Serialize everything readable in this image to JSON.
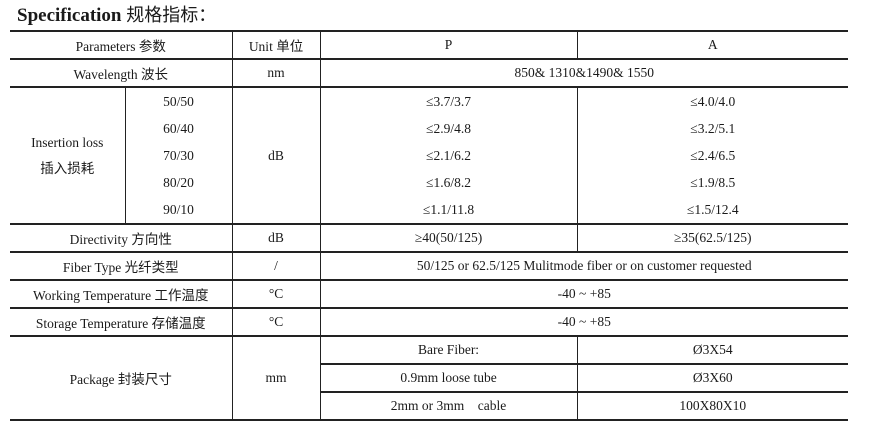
{
  "title": {
    "bold": "Specification",
    "cn": "规格指标："
  },
  "header": {
    "parameters": "Parameters 参数",
    "unit": "Unit 单位",
    "p": "P",
    "a": "A"
  },
  "wavelength": {
    "label": "Wavelength 波长",
    "unit": "nm",
    "value": "850& 1310&1490& 1550"
  },
  "insertion_loss": {
    "label_en": "Insertion loss",
    "label_cn": "插入损耗",
    "unit": "dB",
    "rows": [
      {
        "ratio": "50/50",
        "p": "≤3.7/3.7",
        "a": "≤4.0/4.0"
      },
      {
        "ratio": "60/40",
        "p": "≤2.9/4.8",
        "a": "≤3.2/5.1"
      },
      {
        "ratio": "70/30",
        "p": "≤2.1/6.2",
        "a": "≤2.4/6.5"
      },
      {
        "ratio": "80/20",
        "p": "≤1.6/8.2",
        "a": "≤1.9/8.5"
      },
      {
        "ratio": "90/10",
        "p": "≤1.1/11.8",
        "a": "≤1.5/12.4"
      }
    ]
  },
  "directivity": {
    "label": "Directivity 方向性",
    "unit": "dB",
    "p": "≥40(50/125)",
    "a": "≥35(62.5/125)"
  },
  "fiber_type": {
    "label": "Fiber Type 光纤类型",
    "unit": "/",
    "value": "50/125 or 62.5/125 Mulitmode fiber or on customer requested"
  },
  "working_temp": {
    "label": "Working Temperature 工作温度",
    "unit": "°C",
    "value": "-40 ~ +85"
  },
  "storage_temp": {
    "label": "Storage Temperature 存储温度",
    "unit": "°C",
    "value": "-40 ~ +85"
  },
  "package": {
    "label": "Package 封装尺寸",
    "unit": "mm",
    "rows": [
      {
        "type": "Bare Fiber:",
        "size": "Ø3X54"
      },
      {
        "type": "0.9mm loose tube",
        "size": "Ø3X60"
      },
      {
        "type": "2mm or 3mm    cable",
        "size": "100X80X10"
      }
    ]
  }
}
